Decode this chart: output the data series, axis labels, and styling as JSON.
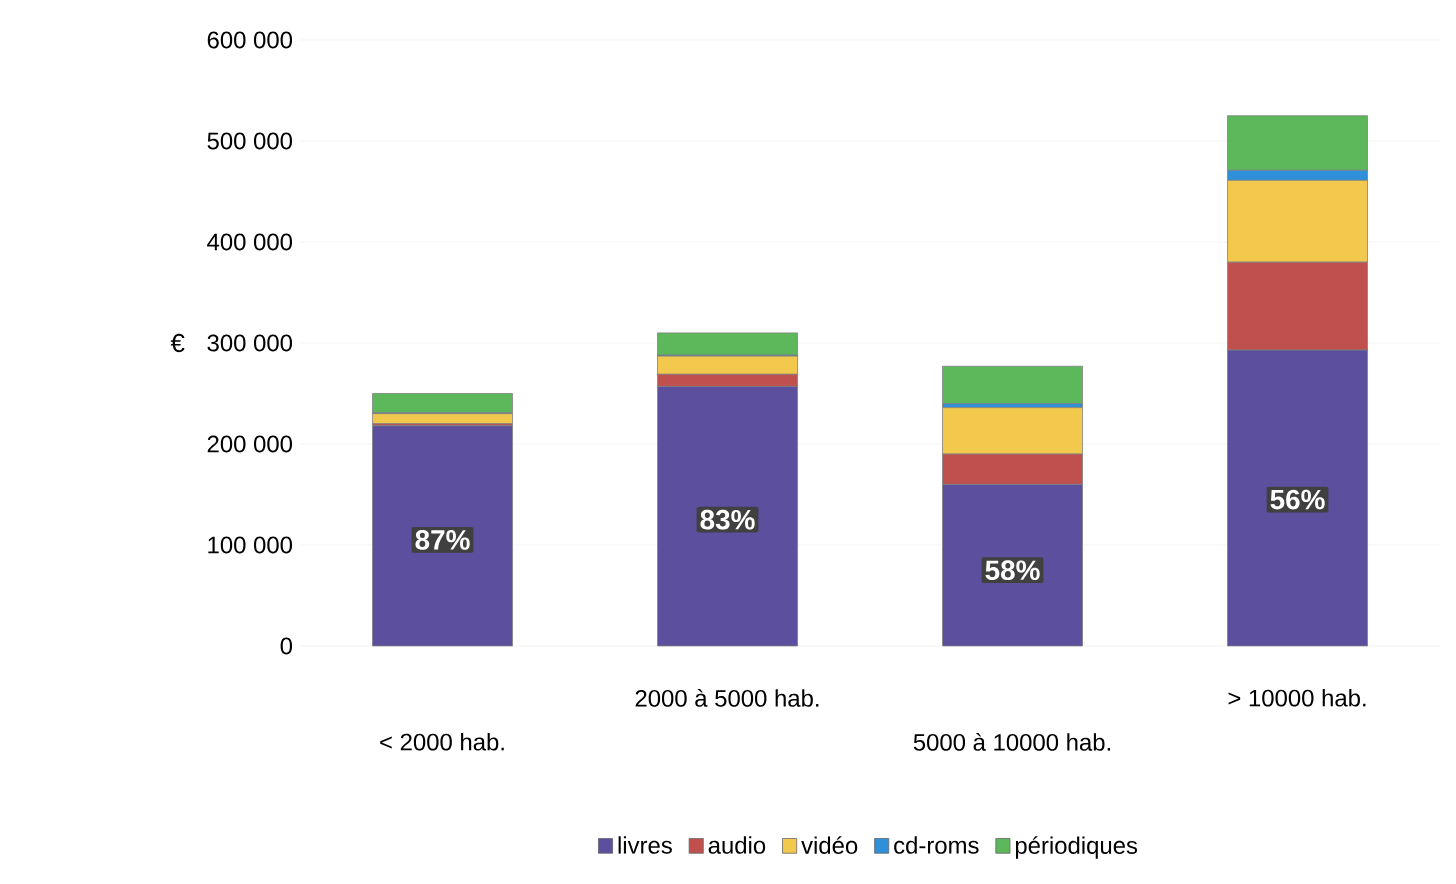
{
  "chart_data": {
    "type": "bar",
    "stacked": true,
    "ylabel": "€",
    "categories": [
      "< 2000 hab.",
      "2000 à 5000 hab.",
      "5000 à 10000 hab.",
      "> 10000 hab."
    ],
    "series": [
      {
        "name": "livres",
        "color": "#5b4f9e",
        "values": [
          218000,
          257000,
          160000,
          293000
        ]
      },
      {
        "name": "audio",
        "color": "#c0504d",
        "values": [
          2000,
          12000,
          30000,
          87000
        ]
      },
      {
        "name": "vidéo",
        "color": "#f2c94c",
        "values": [
          10000,
          18000,
          46000,
          81000
        ]
      },
      {
        "name": "cd-roms",
        "color": "#2f8fd8",
        "values": [
          1000,
          1000,
          4000,
          10000
        ]
      },
      {
        "name": "périodiques",
        "color": "#5db85c",
        "values": [
          19000,
          22000,
          37000,
          54000
        ]
      }
    ],
    "ylim": [
      0,
      600000
    ],
    "yticks": [
      {
        "value": 0,
        "label": "0"
      },
      {
        "value": 100000,
        "label": "100 000"
      },
      {
        "value": 200000,
        "label": "200 000"
      },
      {
        "value": 300000,
        "label": "300 000"
      },
      {
        "value": 400000,
        "label": "400 000"
      },
      {
        "value": 500000,
        "label": "500 000"
      },
      {
        "value": 600000,
        "label": "600 000"
      }
    ],
    "grid": "y",
    "legend": "bottom",
    "annotations": [
      {
        "text": "87%",
        "x": "< 2000 hab.",
        "y": 105000
      },
      {
        "text": "83%",
        "x": "2000 à 5000 hab.",
        "y": 125000
      },
      {
        "text": "58%",
        "x": "5000 à 10000 hab.",
        "y": 75000
      },
      {
        "text": "56%",
        "x": "> 10000 hab.",
        "y": 145000
      }
    ]
  }
}
